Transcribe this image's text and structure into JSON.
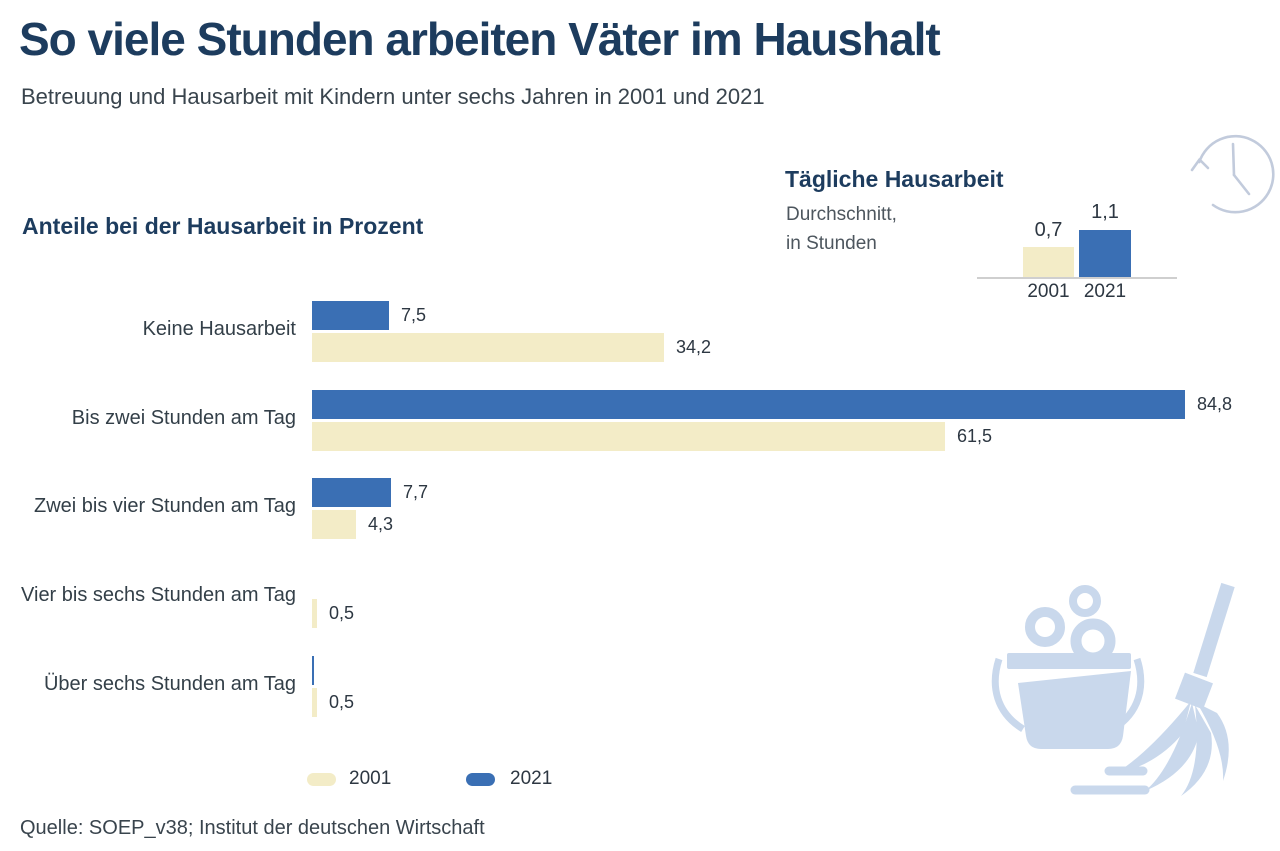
{
  "title": "So viele Stunden arbeiten Väter im Haushalt",
  "subtitle": "Betreuung und Hausarbeit mit Kindern unter sechs Jahren in 2001 und 2021",
  "source": "Quelle: SOEP_v38; Institut der deutschen Wirtschaft",
  "colors": {
    "navy_heading": "#1d3c5e",
    "bar_blue_2021": "#3a6fb4",
    "bar_cream_2001": "#f3ecc7",
    "text_dark": "#2d3742",
    "text_gray": "#4d565e",
    "icon_light_blue": "#c9d8ec",
    "clock_stroke": "#c2cbdc"
  },
  "icons": {
    "top_right": "clock-with-rotation-arrow-icon",
    "bottom_right": "bucket-and-mop-icon"
  },
  "main_chart": {
    "heading": "Anteile bei der Hausarbeit in Prozent",
    "rows": [
      {
        "label": "Keine Hausarbeit",
        "value_2021": 7.5,
        "label_2021": "7,5",
        "value_2001": 34.2,
        "label_2001": "34,2"
      },
      {
        "label": "Bis zwei Stunden am Tag",
        "value_2021": 84.8,
        "label_2021": "84,8",
        "value_2001": 61.5,
        "label_2001": "61,5"
      },
      {
        "label": "Zwei bis vier Stunden am Tag",
        "value_2021": 7.7,
        "label_2021": "7,7",
        "value_2001": 4.3,
        "label_2001": "4,3"
      },
      {
        "label": "Vier bis sechs Stunden am Tag",
        "value_2021": null,
        "label_2021": "",
        "value_2001": 0.5,
        "label_2001": "0,5"
      },
      {
        "label": "Über sechs Stunden am Tag",
        "value_2021": 0.1,
        "label_2021": "",
        "value_2001": 0.5,
        "label_2001": "0,5"
      }
    ]
  },
  "mini_chart": {
    "heading": "Tägliche Hausarbeit",
    "subheading_line1": "Durchschnitt,",
    "subheading_line2": "in Stunden",
    "bars": [
      {
        "year": "2001",
        "value": 0.7,
        "label": "0,7"
      },
      {
        "year": "2021",
        "value": 1.1,
        "label": "1,1"
      }
    ]
  },
  "legend": [
    {
      "label": "2001",
      "color": "#f3ecc7"
    },
    {
      "label": "2021",
      "color": "#3a6fb4"
    }
  ],
  "chart_data": {
    "type": "bar",
    "orientation": "horizontal",
    "title": "So viele Stunden arbeiten Väter im Haushalt",
    "subtitle": "Betreuung und Hausarbeit mit Kindern unter sechs Jahren in 2001 und 2021",
    "section_title": "Anteile bei der Hausarbeit in Prozent",
    "unit": "Prozent",
    "categories": [
      "Keine Hausarbeit",
      "Bis zwei Stunden am Tag",
      "Zwei bis vier Stunden am Tag",
      "Vier bis sechs Stunden am Tag",
      "Über sechs Stunden am Tag"
    ],
    "series": [
      {
        "name": "2001",
        "color": "#f3ecc7",
        "values": [
          34.2,
          61.5,
          4.3,
          0.5,
          0.5
        ]
      },
      {
        "name": "2021",
        "color": "#3a6fb4",
        "values": [
          7.5,
          84.8,
          7.7,
          null,
          0.1
        ]
      }
    ],
    "value_labels": {
      "2001": [
        "34,2",
        "61,5",
        "4,3",
        "0,5",
        "0,5"
      ],
      "2021": [
        "7,5",
        "84,8",
        "7,7",
        "",
        ""
      ]
    },
    "xlim": [
      0,
      90
    ],
    "grid": false,
    "legend_position": "bottom",
    "secondary_chart": {
      "type": "bar",
      "title": "Tägliche Hausarbeit",
      "subtitle": "Durchschnitt, in Stunden",
      "categories": [
        "2001",
        "2021"
      ],
      "values": [
        0.7,
        1.1
      ],
      "value_labels": [
        "0,7",
        "1,1"
      ]
    },
    "source": "Quelle: SOEP_v38; Institut der deutschen Wirtschaft"
  }
}
